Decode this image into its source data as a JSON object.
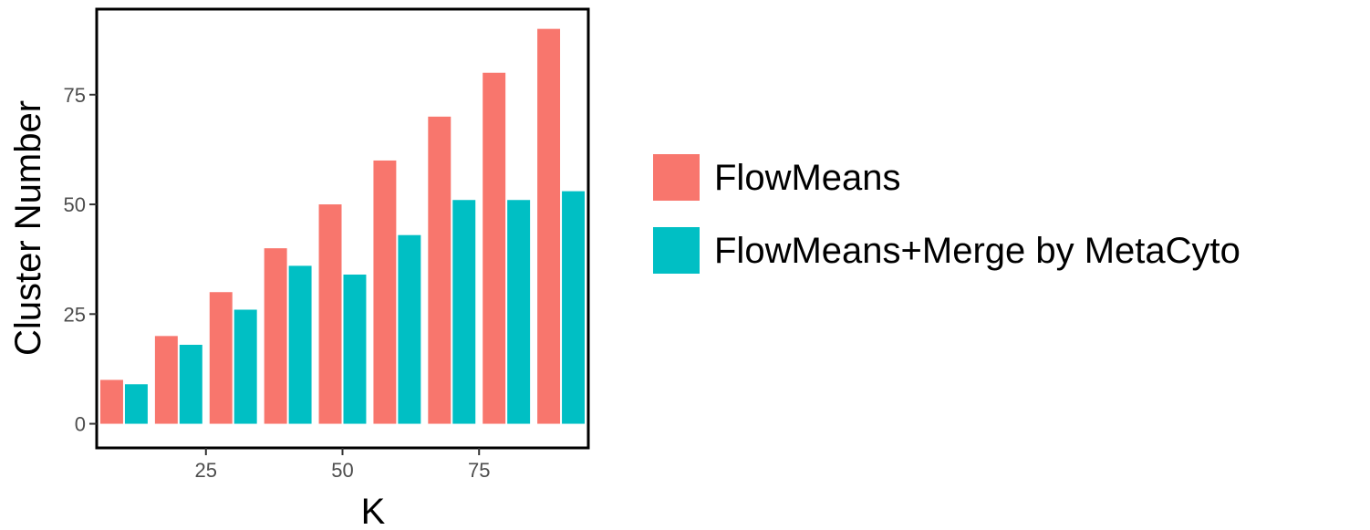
{
  "chart_data": {
    "type": "bar",
    "xlabel": "K",
    "ylabel": "Cluster Number",
    "x": [
      10,
      20,
      30,
      40,
      50,
      60,
      70,
      80,
      90
    ],
    "series": [
      {
        "name": "FlowMeans",
        "color": "#F8766D",
        "values": [
          10,
          20,
          30,
          40,
          50,
          60,
          70,
          80,
          90
        ]
      },
      {
        "name": "FlowMeans+Merge by MetaCyto",
        "color": "#00BFC4",
        "values": [
          9,
          18,
          26,
          36,
          34,
          43,
          51,
          51,
          53
        ]
      }
    ],
    "xticks": [
      "25",
      "50",
      "75"
    ],
    "xtick_values": [
      25,
      50,
      75
    ],
    "yticks": [
      "0",
      "25",
      "50",
      "75"
    ],
    "ytick_values": [
      0,
      25,
      50,
      75
    ],
    "xlim": [
      5,
      95
    ],
    "ylim": [
      -5.5,
      94.5
    ],
    "grid": false,
    "legend_position": "right"
  }
}
